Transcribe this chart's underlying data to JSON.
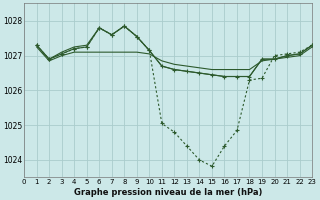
{
  "title": "Graphe pression niveau de la mer (hPa)",
  "bg_color": "#cce8e8",
  "grid_color": "#aacccc",
  "line_color": "#2d5a2d",
  "xlim": [
    0,
    23
  ],
  "ylim": [
    1023.5,
    1028.5
  ],
  "yticks": [
    1024,
    1025,
    1026,
    1027,
    1028
  ],
  "xticks": [
    0,
    1,
    2,
    3,
    4,
    5,
    6,
    7,
    8,
    9,
    10,
    11,
    12,
    13,
    14,
    15,
    16,
    17,
    18,
    19,
    20,
    21,
    22,
    23
  ],
  "line_nearly_flat": {
    "x": [
      1,
      2,
      3,
      4,
      5,
      6,
      7,
      8,
      9,
      10,
      11,
      12,
      13,
      14,
      15,
      16,
      17,
      18,
      19,
      20,
      21,
      22,
      23
    ],
    "y": [
      1027.25,
      1026.85,
      1027.0,
      1027.1,
      1027.1,
      1027.1,
      1027.1,
      1027.1,
      1027.1,
      1027.05,
      1026.85,
      1026.75,
      1026.7,
      1026.65,
      1026.6,
      1026.6,
      1026.6,
      1026.6,
      1026.85,
      1026.9,
      1026.95,
      1027.0,
      1027.25
    ]
  },
  "line_upper": {
    "x": [
      1,
      2,
      3,
      4,
      5,
      6,
      7,
      8,
      9,
      10,
      11,
      12,
      13,
      14,
      15,
      16,
      17,
      18,
      19,
      20,
      21,
      22,
      23
    ],
    "y": [
      1027.3,
      1026.9,
      1027.05,
      1027.2,
      1027.25,
      1027.8,
      1027.6,
      1027.85,
      1027.55,
      1027.15,
      1026.7,
      1026.6,
      1026.55,
      1026.5,
      1026.45,
      1026.4,
      1026.4,
      1026.4,
      1026.9,
      1026.9,
      1027.0,
      1027.05,
      1027.3
    ]
  },
  "line_upper2": {
    "x": [
      1,
      2,
      3,
      4,
      5,
      6,
      7,
      8,
      9,
      10,
      11,
      12,
      13,
      14,
      15,
      16,
      17,
      18,
      19,
      20,
      21,
      22,
      23
    ],
    "y": [
      1027.3,
      1026.9,
      1027.1,
      1027.25,
      1027.3,
      1027.8,
      1027.6,
      1027.85,
      1027.55,
      1027.15,
      1026.7,
      1026.6,
      1026.55,
      1026.5,
      1026.45,
      1026.4,
      1026.4,
      1026.4,
      1026.9,
      1026.9,
      1027.0,
      1027.05,
      1027.3
    ]
  },
  "line_dip": {
    "x": [
      1,
      2,
      3,
      4,
      5,
      6,
      7,
      8,
      9,
      10,
      11,
      12,
      13,
      14,
      15,
      16,
      17,
      18,
      19,
      20,
      21,
      22,
      23
    ],
    "y": [
      1027.3,
      1026.9,
      1027.05,
      1027.2,
      1027.25,
      1027.8,
      1027.6,
      1027.85,
      1027.55,
      1027.15,
      1025.05,
      1024.8,
      1024.4,
      1024.0,
      1023.82,
      1024.4,
      1024.85,
      1026.3,
      1026.35,
      1027.0,
      1027.05,
      1027.1,
      1027.3
    ]
  }
}
